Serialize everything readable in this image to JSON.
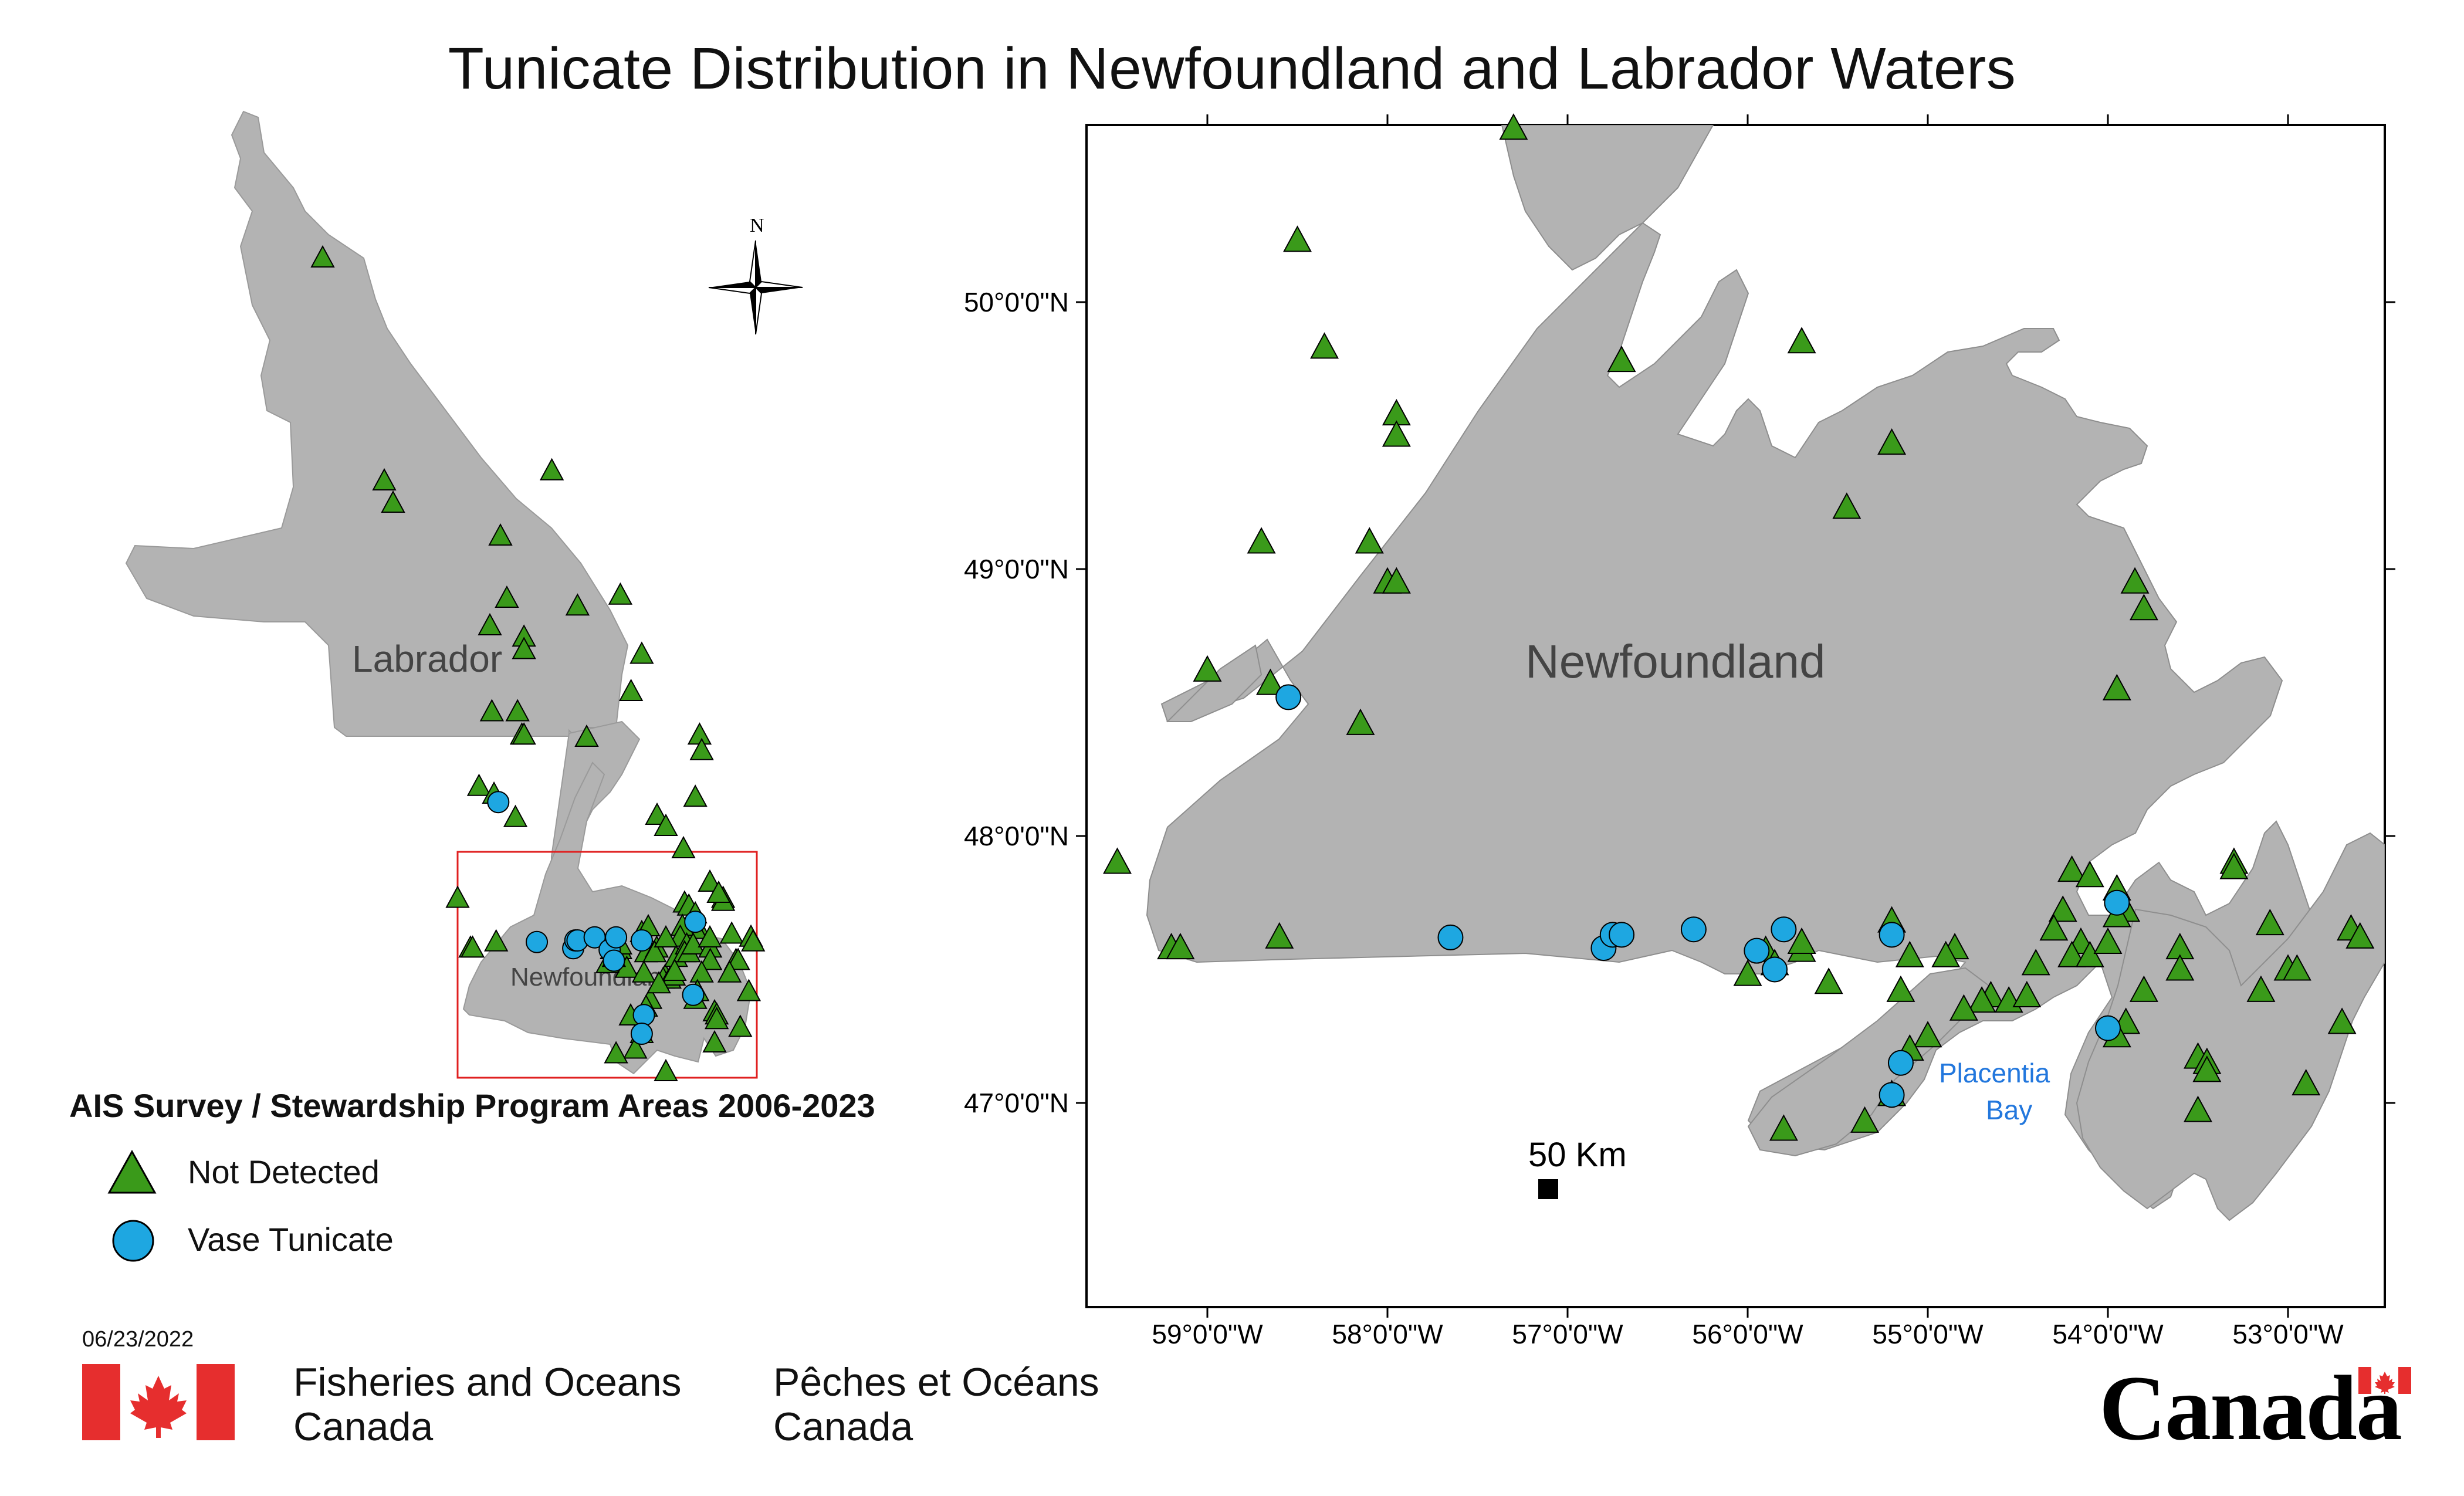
{
  "title": "Tunicate Distribution in Newfoundland and Labrador Waters",
  "legend": {
    "title": "AIS Survey / Stewardship Program Areas 2006-2023",
    "items": [
      {
        "label": "Not Detected",
        "symbol": "triangle",
        "color": "#3a9a1a"
      },
      {
        "label": "Vase Tunicate",
        "symbol": "circle",
        "color": "#1ea7e1"
      }
    ]
  },
  "date": "06/23/2022",
  "overview_map": {
    "labels": {
      "labrador": "Labrador",
      "newfoundland": "Newfoundland"
    },
    "north_arrow": "N"
  },
  "detail_map": {
    "labels": {
      "newfoundland": "Newfoundland",
      "placentia_line1": "Placentia",
      "placentia_line2": "Bay"
    },
    "scale_bar": "50 Km",
    "lon_ticks": [
      "59°0'0\"W",
      "58°0'0\"W",
      "57°0'0\"W",
      "56°0'0\"W",
      "55°0'0\"W",
      "54°0'0\"W",
      "53°0'0\"W"
    ],
    "lat_ticks": [
      "50°0'0\"N",
      "49°0'0\"N",
      "48°0'0\"N",
      "47°0'0\"N"
    ],
    "land_color": "#b3b3b3",
    "not_detected_sites": [
      [
        -57.3,
        50.65
      ],
      [
        -58.5,
        50.23
      ],
      [
        -58.35,
        49.83
      ],
      [
        -57.95,
        49.58
      ],
      [
        -57.95,
        49.5
      ],
      [
        -56.7,
        49.78
      ],
      [
        -55.7,
        49.85
      ],
      [
        -55.2,
        49.47
      ],
      [
        -55.45,
        49.23
      ],
      [
        -58.7,
        49.1
      ],
      [
        -58.1,
        49.1
      ],
      [
        -58.0,
        48.95
      ],
      [
        -57.95,
        48.95
      ],
      [
        -59.0,
        48.62
      ],
      [
        -58.65,
        48.57
      ],
      [
        -58.15,
        48.42
      ],
      [
        -59.5,
        47.9
      ],
      [
        -59.2,
        47.58
      ],
      [
        -59.15,
        47.58
      ],
      [
        -58.6,
        47.62
      ],
      [
        -55.9,
        47.57
      ],
      [
        -55.7,
        47.57
      ],
      [
        -55.55,
        47.45
      ],
      [
        -55.1,
        47.55
      ],
      [
        -55.2,
        47.68
      ],
      [
        -54.85,
        47.58
      ],
      [
        -54.9,
        47.55
      ],
      [
        -54.65,
        47.4
      ],
      [
        -54.7,
        47.38
      ],
      [
        -54.55,
        47.38
      ],
      [
        -54.45,
        47.4
      ],
      [
        -54.4,
        47.52
      ],
      [
        -54.2,
        47.87
      ],
      [
        -54.1,
        47.85
      ],
      [
        -53.95,
        47.8
      ],
      [
        -53.9,
        47.72
      ],
      [
        -53.95,
        47.7
      ],
      [
        -54.25,
        47.72
      ],
      [
        -54.3,
        47.65
      ],
      [
        -54.15,
        47.6
      ],
      [
        -54.2,
        47.55
      ],
      [
        -54.1,
        47.55
      ],
      [
        -54.0,
        47.6
      ],
      [
        -53.85,
        48.95
      ],
      [
        -53.8,
        48.85
      ],
      [
        -53.95,
        48.55
      ],
      [
        -53.3,
        47.9
      ],
      [
        -53.3,
        47.88
      ],
      [
        -53.1,
        47.67
      ],
      [
        -53.0,
        47.5
      ],
      [
        -52.95,
        47.5
      ],
      [
        -53.6,
        47.58
      ],
      [
        -53.6,
        47.5
      ],
      [
        -53.8,
        47.42
      ],
      [
        -53.9,
        47.3
      ],
      [
        -53.95,
        47.25
      ],
      [
        -53.5,
        47.17
      ],
      [
        -53.45,
        47.15
      ],
      [
        -53.45,
        47.12
      ],
      [
        -53.5,
        46.97
      ],
      [
        -52.9,
        47.07
      ],
      [
        -52.7,
        47.3
      ],
      [
        -52.65,
        47.65
      ],
      [
        -52.6,
        47.62
      ],
      [
        -53.15,
        47.42
      ],
      [
        -55.0,
        47.25
      ],
      [
        -55.1,
        47.2
      ],
      [
        -55.2,
        47.03
      ],
      [
        -55.35,
        46.93
      ],
      [
        -55.8,
        46.9
      ],
      [
        -56.0,
        47.48
      ],
      [
        -55.85,
        47.52
      ],
      [
        -55.7,
        47.6
      ],
      [
        -55.15,
        47.42
      ],
      [
        -54.8,
        47.35
      ]
    ],
    "vase_tunicate_sites": [
      [
        -58.55,
        48.52
      ],
      [
        -57.65,
        47.62
      ],
      [
        -56.8,
        47.58
      ],
      [
        -56.75,
        47.63
      ],
      [
        -56.7,
        47.63
      ],
      [
        -56.3,
        47.65
      ],
      [
        -55.95,
        47.57
      ],
      [
        -55.85,
        47.5
      ],
      [
        -55.8,
        47.65
      ],
      [
        -55.2,
        47.63
      ],
      [
        -55.15,
        47.15
      ],
      [
        -55.2,
        47.03
      ],
      [
        -53.95,
        47.75
      ],
      [
        -54.0,
        47.28
      ]
    ]
  }
}
